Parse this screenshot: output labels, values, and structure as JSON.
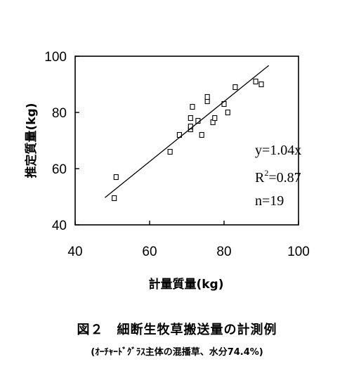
{
  "chart_data": {
    "type": "scatter",
    "xlabel": "計量質量(kg)",
    "ylabel": "推定質量(kg)",
    "xlim": [
      40,
      100
    ],
    "ylim": [
      40,
      100
    ],
    "xticks": [
      40,
      60,
      80,
      100
    ],
    "yticks": [
      40,
      60,
      80,
      100
    ],
    "grid": false,
    "points": [
      {
        "x": 50.5,
        "y": 49.5
      },
      {
        "x": 51,
        "y": 57
      },
      {
        "x": 65.5,
        "y": 66
      },
      {
        "x": 68,
        "y": 72
      },
      {
        "x": 71,
        "y": 74
      },
      {
        "x": 71,
        "y": 75
      },
      {
        "x": 71,
        "y": 78
      },
      {
        "x": 71.5,
        "y": 82
      },
      {
        "x": 73,
        "y": 77
      },
      {
        "x": 74,
        "y": 72
      },
      {
        "x": 75.5,
        "y": 84
      },
      {
        "x": 75.5,
        "y": 85.5
      },
      {
        "x": 77,
        "y": 76.5
      },
      {
        "x": 77.5,
        "y": 78
      },
      {
        "x": 80,
        "y": 83
      },
      {
        "x": 81,
        "y": 80
      },
      {
        "x": 83,
        "y": 89
      },
      {
        "x": 88.5,
        "y": 91
      },
      {
        "x": 90,
        "y": 90
      }
    ],
    "regression_line": {
      "x": [
        48,
        92
      ],
      "y": [
        49.7,
        96.7
      ]
    },
    "annotations": {
      "equation": "y=1.04x",
      "r2_prefix": "R",
      "r2_exp": "2",
      "r2_value": "=0.87",
      "n": "n=19"
    }
  },
  "caption": {
    "title": "図２　細断生牧草搬送量の計測例",
    "subtitle": "(ｵｰﾁｬｰﾄﾞｸﾞﾗｽ主体の混播草、水分74.4%)"
  }
}
